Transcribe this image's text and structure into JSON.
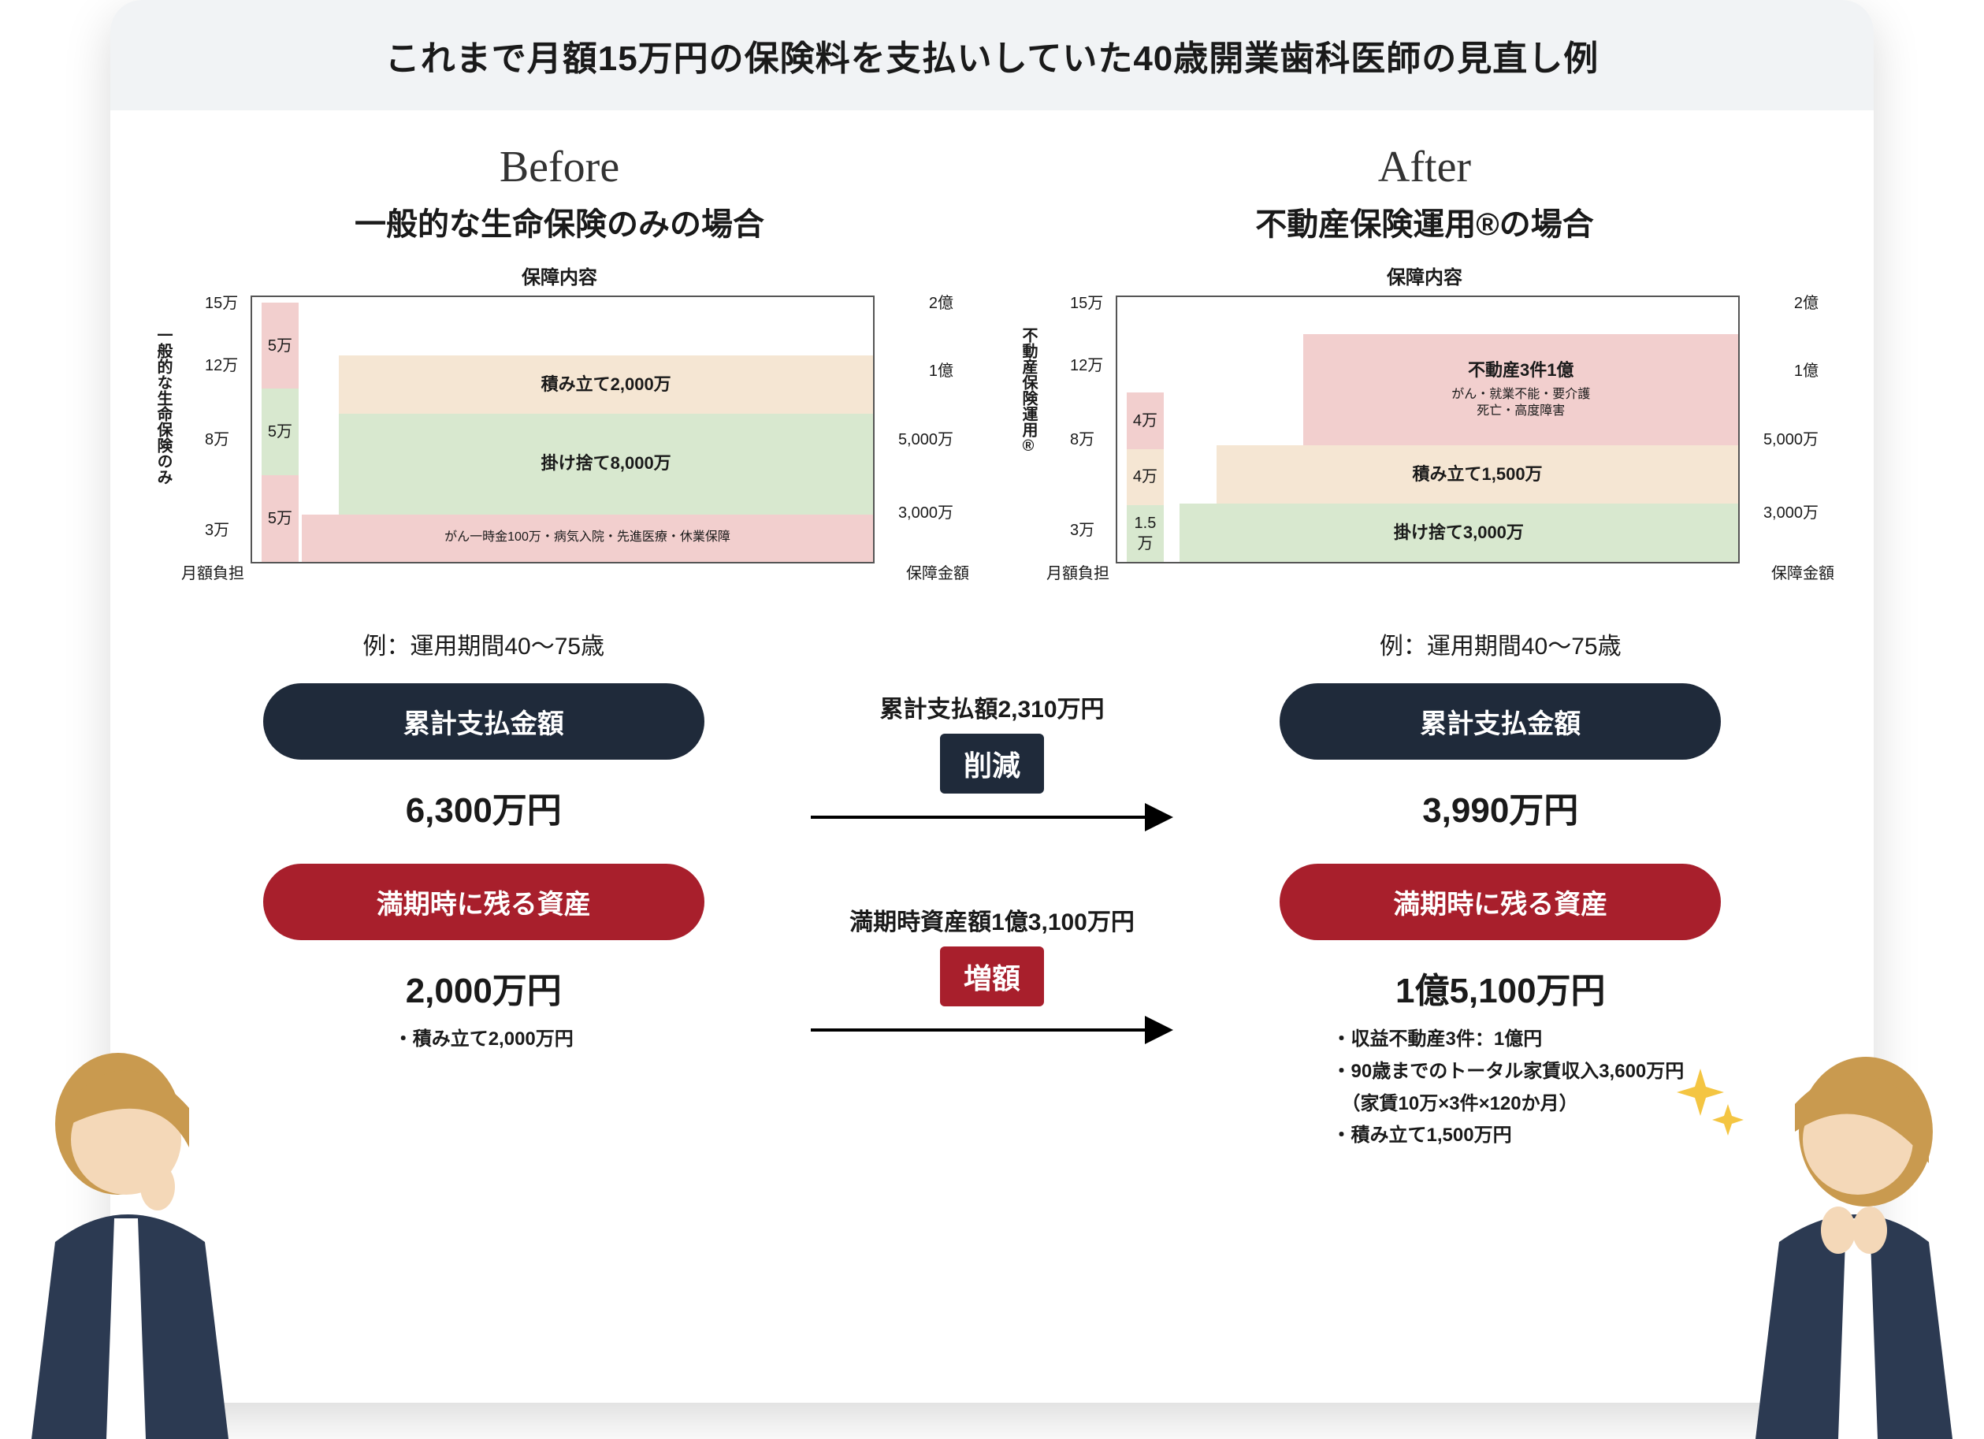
{
  "colors": {
    "title_bg": "#f1f3f5",
    "pink": "#f2cfce",
    "beige": "#f5e6d3",
    "green": "#d8e8cf",
    "dark_navy": "#1f2a3a",
    "dark_red": "#a81f2c",
    "text": "#1a1a1a",
    "border": "#555555",
    "person_skin": "#f4d8b8",
    "person_hair": "#c99a4f",
    "person_suit": "#2c3a52",
    "sparkle": "#f4c542"
  },
  "title": "これまで月額15万円の保険料を支払いしていた40歳開業歯科医師の見直し例",
  "before": {
    "script": "Before",
    "heading": "一般的な生命保険のみの場合",
    "chart": {
      "header": "保障内容",
      "left_axis_title": "一般的な生命保険のみ",
      "left_axis_note": "月額負担",
      "right_axis_note": "保障金額",
      "left_ticks": [
        "15万",
        "12万",
        "8万",
        "3万"
      ],
      "right_ticks": [
        "2億",
        "1億",
        "5,000万",
        "3,000万"
      ],
      "stack": [
        {
          "label": "5万",
          "color": "pink"
        },
        {
          "label": "5万",
          "color": "green"
        },
        {
          "label": "5万",
          "color": "pink"
        }
      ],
      "bars": [
        {
          "label": "積み立て2,000万",
          "color": "beige",
          "top_pct": 22,
          "height_pct": 22,
          "left_pct": 14,
          "right_pct": 0,
          "fs": "seg"
        },
        {
          "label": "掛け捨て8,000万",
          "color": "green",
          "top_pct": 44,
          "height_pct": 38,
          "left_pct": 14,
          "right_pct": 0,
          "fs": "seg"
        },
        {
          "label": "がん一時金100万・病気入院・先進医療・休業保障",
          "color": "pink",
          "top_pct": 82,
          "height_pct": 18,
          "left_pct": 8,
          "right_pct": 0,
          "fs": "seg-small"
        }
      ]
    }
  },
  "after": {
    "script": "After",
    "heading": "不動産保険運用®の場合",
    "chart": {
      "header": "保障内容",
      "left_axis_title": "不動産保険運用®",
      "left_axis_note": "月額負担",
      "right_axis_note": "保障金額",
      "left_ticks": [
        "15万",
        "12万",
        "8万",
        "3万"
      ],
      "right_ticks": [
        "2億",
        "1億",
        "5,000万",
        "3,000万"
      ],
      "stack": [
        {
          "label": "4万",
          "color": "pink"
        },
        {
          "label": "4万",
          "color": "beige"
        },
        {
          "label": "1.5万",
          "color": "green"
        }
      ],
      "bars": [
        {
          "label": "不動産3件1億",
          "sublabel": "がん・就業不能・要介護\n死亡・高度障害",
          "color": "pink",
          "top_pct": 14,
          "height_pct": 42,
          "left_pct": 30,
          "right_pct": 0,
          "fs": "seg"
        },
        {
          "label": "積み立て1,500万",
          "color": "beige",
          "top_pct": 56,
          "height_pct": 22,
          "left_pct": 16,
          "right_pct": 0,
          "fs": "seg"
        },
        {
          "label": "掛け捨て3,000万",
          "color": "green",
          "top_pct": 78,
          "height_pct": 22,
          "left_pct": 10,
          "right_pct": 0,
          "fs": "seg"
        }
      ]
    }
  },
  "summary": {
    "period": "例：運用期間40〜75歳",
    "pay_label": "累計支払金額",
    "asset_label": "満期時に残る資産",
    "before_pay": "6,300万円",
    "before_asset": "2,000万円",
    "before_asset_detail": "・積み立て2,000万円",
    "after_pay": "3,990万円",
    "after_asset": "1億5,100万円",
    "after_asset_detail": "・収益不動産3件：1億円\n・90歳までのトータル家賃収入3,600万円\n　（家賃10万×3件×120か月）\n・積み立て1,500万円",
    "mid_top_label": "累計支払額2,310万円",
    "mid_top_badge": "削減",
    "mid_bot_label": "満期時資産額1億3,100万円",
    "mid_bot_badge": "増額"
  }
}
